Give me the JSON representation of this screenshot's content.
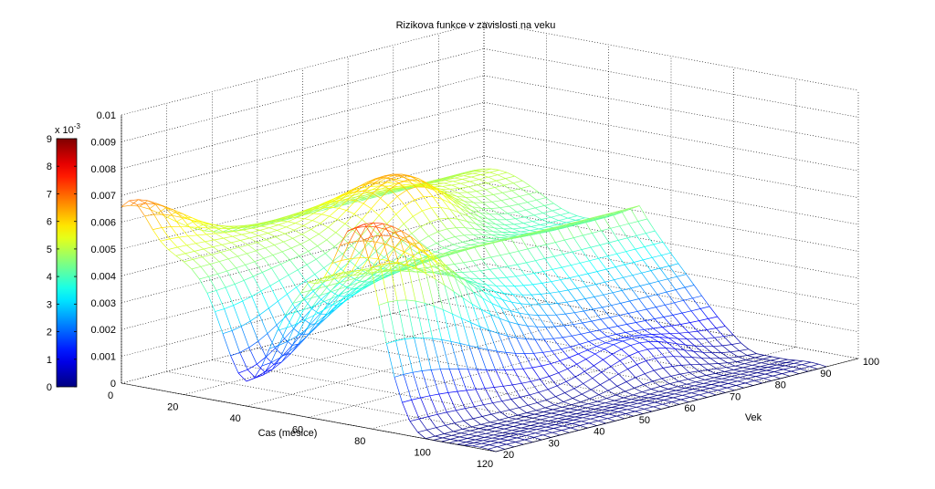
{
  "chart_data": {
    "type": "surface",
    "title": "Rizikova funkce v zavislosti na veku",
    "xlabel": "Cas (mesice)",
    "ylabel": "Vek",
    "zlabel": "",
    "x_ticks": [
      "0",
      "20",
      "40",
      "60",
      "80",
      "100",
      "120"
    ],
    "y_ticks": [
      "20",
      "30",
      "40",
      "50",
      "60",
      "70",
      "80",
      "90",
      "100"
    ],
    "z_ticks": [
      "0",
      "0.001",
      "0.002",
      "0.003",
      "0.004",
      "0.005",
      "0.006",
      "0.007",
      "0.008",
      "0.009",
      "0.01"
    ],
    "xlim": [
      0,
      120
    ],
    "ylim": [
      20,
      100
    ],
    "zlim": [
      0,
      0.01
    ],
    "grid": true,
    "colormap": "jet",
    "colorbar": {
      "ticks": [
        "0",
        "1",
        "2",
        "3",
        "4",
        "5",
        "6",
        "7",
        "8",
        "9"
      ],
      "exponent": "x 10",
      "exponent_power": "-3",
      "range": [
        0,
        9
      ]
    },
    "surface_mesh": {
      "x_start": 0,
      "x_end": 120,
      "x_count": 49,
      "y_start": 20,
      "y_end": 93,
      "y_count": 37
    },
    "peaks": [
      {
        "x": 75,
        "y": 25,
        "value": 0.0088
      },
      {
        "x": 3,
        "y": 20,
        "value": 0.0065
      },
      {
        "x": 28,
        "y": 62,
        "value": 0.0057
      }
    ],
    "values_at_peak_row": {
      "x": [
        0,
        10,
        20,
        30,
        40,
        50,
        60,
        70,
        75,
        80,
        90,
        100,
        110,
        120
      ],
      "z": [
        0.0045,
        0.0058,
        0.0055,
        0.005,
        0.0042,
        0.0034,
        0.0043,
        0.007,
        0.0088,
        0.0055,
        0.002,
        0.0008,
        0.0002,
        0.0
      ]
    }
  }
}
